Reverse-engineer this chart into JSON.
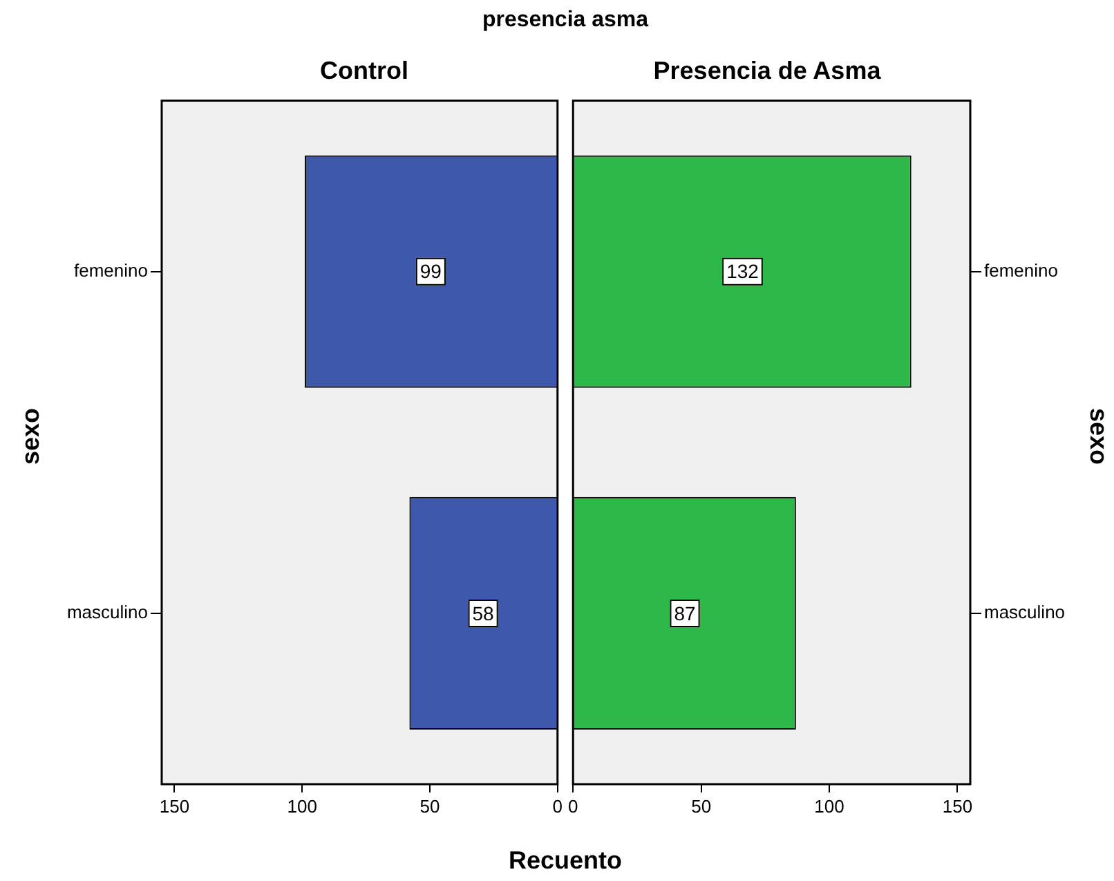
{
  "chart_data": [
    {
      "type": "bar",
      "orientation": "horizontal",
      "title": "Control",
      "ylabel": "sexo",
      "xlabel": "Recuento",
      "annotations": [
        "presencia asma"
      ],
      "categories": [
        "femenino",
        "masculino"
      ],
      "values": [
        99,
        58
      ],
      "color": "#3e58ab",
      "xlim": [
        155,
        0
      ],
      "xticks": [
        150,
        100,
        50,
        0
      ],
      "data_labels": true
    },
    {
      "type": "bar",
      "orientation": "horizontal",
      "title": "Presencia de Asma",
      "y2label": "sexo",
      "categories": [
        "femenino",
        "masculino"
      ],
      "values": [
        132,
        87
      ],
      "color": "#2fb84a",
      "xlim": [
        0,
        155
      ],
      "xticks": [
        0,
        50,
        100,
        150
      ],
      "data_labels": true
    }
  ]
}
